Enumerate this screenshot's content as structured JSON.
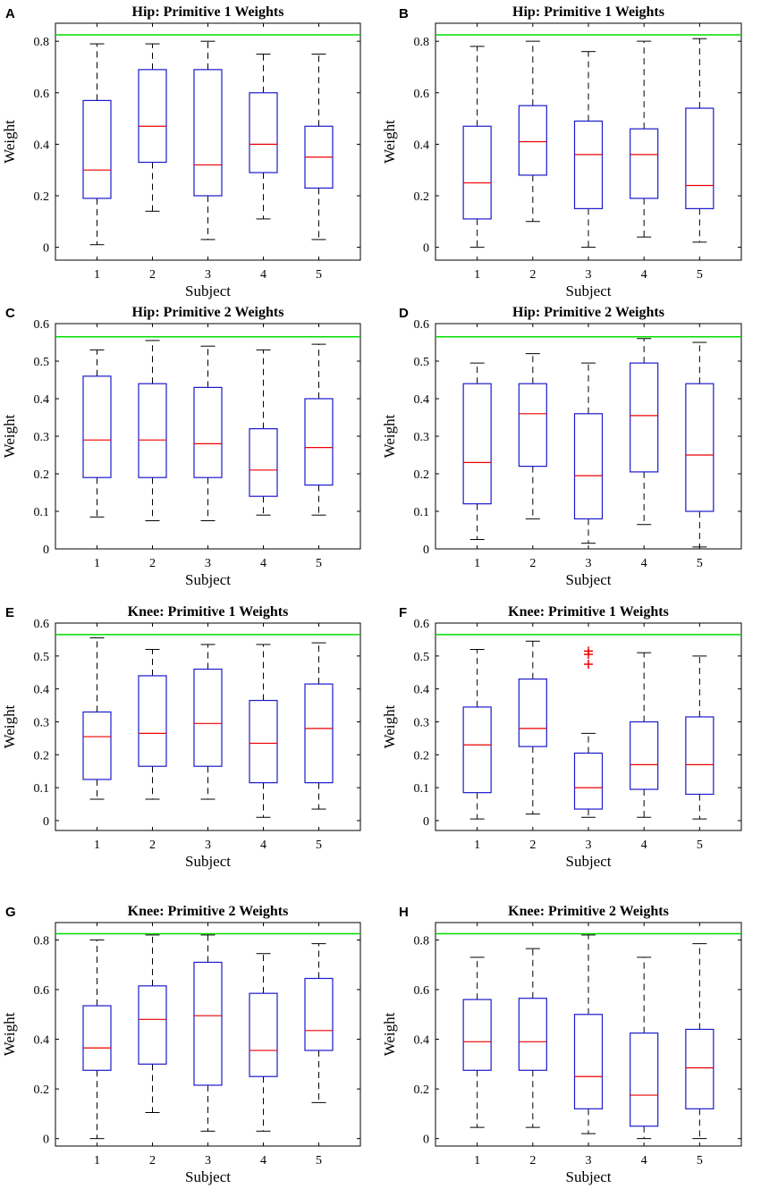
{
  "figure": {
    "reference_line_color": "#00dd00",
    "box_color": "#1a1acc",
    "median_color": "#ee0000",
    "whisker_color": "#000000",
    "outlier_color": "#ee0000"
  },
  "chart_data": [
    {
      "panel": "A",
      "type": "boxplot",
      "title": "Hip: Primitive 1 Weights",
      "xlabel": "Subject",
      "ylabel": "Weight",
      "categories": [
        "1",
        "2",
        "3",
        "4",
        "5"
      ],
      "ylim": [
        -0.05,
        0.87
      ],
      "yticks": [
        "0",
        "0.2",
        "0.4",
        "0.6",
        "0.8"
      ],
      "ytick_values": [
        0,
        0.2,
        0.4,
        0.6,
        0.8
      ],
      "reference_line": 0.825,
      "boxes": [
        {
          "min": 0.01,
          "q1": 0.19,
          "median": 0.3,
          "q3": 0.57,
          "max": 0.79,
          "outliers": []
        },
        {
          "min": 0.14,
          "q1": 0.33,
          "median": 0.47,
          "q3": 0.69,
          "max": 0.79,
          "outliers": []
        },
        {
          "min": 0.03,
          "q1": 0.2,
          "median": 0.32,
          "q3": 0.69,
          "max": 0.8,
          "outliers": []
        },
        {
          "min": 0.11,
          "q1": 0.29,
          "median": 0.4,
          "q3": 0.6,
          "max": 0.75,
          "outliers": []
        },
        {
          "min": 0.03,
          "q1": 0.23,
          "median": 0.35,
          "q3": 0.47,
          "max": 0.75,
          "outliers": []
        }
      ]
    },
    {
      "panel": "B",
      "type": "boxplot",
      "title": "Hip: Primitive 1 Weights",
      "xlabel": "Subject",
      "ylabel": "Weight",
      "categories": [
        "1",
        "2",
        "3",
        "4",
        "5"
      ],
      "ylim": [
        -0.05,
        0.87
      ],
      "yticks": [
        "0",
        "0.2",
        "0.4",
        "0.6",
        "0.8"
      ],
      "ytick_values": [
        0,
        0.2,
        0.4,
        0.6,
        0.8
      ],
      "reference_line": 0.825,
      "boxes": [
        {
          "min": 0.0,
          "q1": 0.11,
          "median": 0.25,
          "q3": 0.47,
          "max": 0.78,
          "outliers": []
        },
        {
          "min": 0.1,
          "q1": 0.28,
          "median": 0.41,
          "q3": 0.55,
          "max": 0.8,
          "outliers": []
        },
        {
          "min": 0.0,
          "q1": 0.15,
          "median": 0.36,
          "q3": 0.49,
          "max": 0.76,
          "outliers": []
        },
        {
          "min": 0.04,
          "q1": 0.19,
          "median": 0.36,
          "q3": 0.46,
          "max": 0.8,
          "outliers": []
        },
        {
          "min": 0.02,
          "q1": 0.15,
          "median": 0.24,
          "q3": 0.54,
          "max": 0.81,
          "outliers": []
        }
      ]
    },
    {
      "panel": "C",
      "type": "boxplot",
      "title": "Hip: Primitive 2 Weights",
      "xlabel": "Subject",
      "ylabel": "Weight",
      "categories": [
        "1",
        "2",
        "3",
        "4",
        "5"
      ],
      "ylim": [
        0,
        0.6
      ],
      "yticks": [
        "0",
        "0.1",
        "0.2",
        "0.3",
        "0.4",
        "0.5",
        "0.6"
      ],
      "ytick_values": [
        0,
        0.1,
        0.2,
        0.3,
        0.4,
        0.5,
        0.6
      ],
      "reference_line": 0.565,
      "boxes": [
        {
          "min": 0.085,
          "q1": 0.19,
          "median": 0.29,
          "q3": 0.46,
          "max": 0.53,
          "outliers": []
        },
        {
          "min": 0.075,
          "q1": 0.19,
          "median": 0.29,
          "q3": 0.44,
          "max": 0.555,
          "outliers": []
        },
        {
          "min": 0.075,
          "q1": 0.19,
          "median": 0.28,
          "q3": 0.43,
          "max": 0.54,
          "outliers": []
        },
        {
          "min": 0.09,
          "q1": 0.14,
          "median": 0.21,
          "q3": 0.32,
          "max": 0.53,
          "outliers": []
        },
        {
          "min": 0.09,
          "q1": 0.17,
          "median": 0.27,
          "q3": 0.4,
          "max": 0.545,
          "outliers": []
        }
      ]
    },
    {
      "panel": "D",
      "type": "boxplot",
      "title": "Hip: Primitive 2 Weights",
      "xlabel": "Subject",
      "ylabel": "Weight",
      "categories": [
        "1",
        "2",
        "3",
        "4",
        "5"
      ],
      "ylim": [
        0,
        0.6
      ],
      "yticks": [
        "0",
        "0.1",
        "0.2",
        "0.3",
        "0.4",
        "0.5",
        "0.6"
      ],
      "ytick_values": [
        0,
        0.1,
        0.2,
        0.3,
        0.4,
        0.5,
        0.6
      ],
      "reference_line": 0.565,
      "boxes": [
        {
          "min": 0.025,
          "q1": 0.12,
          "median": 0.23,
          "q3": 0.44,
          "max": 0.495,
          "outliers": []
        },
        {
          "min": 0.08,
          "q1": 0.22,
          "median": 0.36,
          "q3": 0.44,
          "max": 0.52,
          "outliers": []
        },
        {
          "min": 0.015,
          "q1": 0.08,
          "median": 0.195,
          "q3": 0.36,
          "max": 0.495,
          "outliers": []
        },
        {
          "min": 0.065,
          "q1": 0.205,
          "median": 0.355,
          "q3": 0.495,
          "max": 0.56,
          "outliers": []
        },
        {
          "min": 0.005,
          "q1": 0.1,
          "median": 0.25,
          "q3": 0.44,
          "max": 0.55,
          "outliers": []
        }
      ]
    },
    {
      "panel": "E",
      "type": "boxplot",
      "title": "Knee: Primitive 1 Weights",
      "xlabel": "Subject",
      "ylabel": "Weight",
      "categories": [
        "1",
        "2",
        "3",
        "4",
        "5"
      ],
      "ylim": [
        -0.03,
        0.6
      ],
      "yticks": [
        "0",
        "0.1",
        "0.2",
        "0.3",
        "0.4",
        "0.5",
        "0.6"
      ],
      "ytick_values": [
        0,
        0.1,
        0.2,
        0.3,
        0.4,
        0.5,
        0.6
      ],
      "reference_line": 0.565,
      "boxes": [
        {
          "min": 0.065,
          "q1": 0.125,
          "median": 0.255,
          "q3": 0.33,
          "max": 0.555,
          "outliers": []
        },
        {
          "min": 0.065,
          "q1": 0.165,
          "median": 0.265,
          "q3": 0.44,
          "max": 0.52,
          "outliers": []
        },
        {
          "min": 0.065,
          "q1": 0.165,
          "median": 0.295,
          "q3": 0.46,
          "max": 0.535,
          "outliers": []
        },
        {
          "min": 0.01,
          "q1": 0.115,
          "median": 0.235,
          "q3": 0.365,
          "max": 0.535,
          "outliers": []
        },
        {
          "min": 0.035,
          "q1": 0.115,
          "median": 0.28,
          "q3": 0.415,
          "max": 0.54,
          "outliers": []
        }
      ]
    },
    {
      "panel": "F",
      "type": "boxplot",
      "title": "Knee: Primitive 1 Weights",
      "xlabel": "Subject",
      "ylabel": "Weight",
      "categories": [
        "1",
        "2",
        "3",
        "4",
        "5"
      ],
      "ylim": [
        -0.03,
        0.6
      ],
      "yticks": [
        "0",
        "0.1",
        "0.2",
        "0.3",
        "0.4",
        "0.5",
        "0.6"
      ],
      "ytick_values": [
        0,
        0.1,
        0.2,
        0.3,
        0.4,
        0.5,
        0.6
      ],
      "reference_line": 0.565,
      "boxes": [
        {
          "min": 0.005,
          "q1": 0.085,
          "median": 0.23,
          "q3": 0.345,
          "max": 0.52,
          "outliers": []
        },
        {
          "min": 0.02,
          "q1": 0.225,
          "median": 0.28,
          "q3": 0.43,
          "max": 0.545,
          "outliers": []
        },
        {
          "min": 0.01,
          "q1": 0.035,
          "median": 0.1,
          "q3": 0.205,
          "max": 0.265,
          "outliers": [
            0.475,
            0.505,
            0.515
          ]
        },
        {
          "min": 0.01,
          "q1": 0.095,
          "median": 0.17,
          "q3": 0.3,
          "max": 0.51,
          "outliers": []
        },
        {
          "min": 0.005,
          "q1": 0.08,
          "median": 0.17,
          "q3": 0.315,
          "max": 0.5,
          "outliers": []
        }
      ]
    },
    {
      "panel": "G",
      "type": "boxplot",
      "title": "Knee: Primitive 2 Weights",
      "xlabel": "Subject",
      "ylabel": "Weight",
      "categories": [
        "1",
        "2",
        "3",
        "4",
        "5"
      ],
      "ylim": [
        -0.03,
        0.87
      ],
      "yticks": [
        "0",
        "0.2",
        "0.4",
        "0.6",
        "0.8"
      ],
      "ytick_values": [
        0,
        0.2,
        0.4,
        0.6,
        0.8
      ],
      "reference_line": 0.825,
      "boxes": [
        {
          "min": 0.0,
          "q1": 0.275,
          "median": 0.365,
          "q3": 0.535,
          "max": 0.8,
          "outliers": []
        },
        {
          "min": 0.105,
          "q1": 0.3,
          "median": 0.48,
          "q3": 0.615,
          "max": 0.82,
          "outliers": []
        },
        {
          "min": 0.03,
          "q1": 0.215,
          "median": 0.495,
          "q3": 0.71,
          "max": 0.82,
          "outliers": []
        },
        {
          "min": 0.03,
          "q1": 0.25,
          "median": 0.355,
          "q3": 0.585,
          "max": 0.745,
          "outliers": []
        },
        {
          "min": 0.145,
          "q1": 0.355,
          "median": 0.435,
          "q3": 0.645,
          "max": 0.785,
          "outliers": []
        }
      ]
    },
    {
      "panel": "H",
      "type": "boxplot",
      "title": "Knee: Primitive 2 Weights",
      "xlabel": "Subject",
      "ylabel": "Weight",
      "categories": [
        "1",
        "2",
        "3",
        "4",
        "5"
      ],
      "ylim": [
        -0.03,
        0.87
      ],
      "yticks": [
        "0",
        "0.2",
        "0.4",
        "0.6",
        "0.8"
      ],
      "ytick_values": [
        0,
        0.2,
        0.4,
        0.6,
        0.8
      ],
      "reference_line": 0.825,
      "boxes": [
        {
          "min": 0.045,
          "q1": 0.275,
          "median": 0.39,
          "q3": 0.56,
          "max": 0.73,
          "outliers": []
        },
        {
          "min": 0.045,
          "q1": 0.275,
          "median": 0.39,
          "q3": 0.565,
          "max": 0.765,
          "outliers": []
        },
        {
          "min": 0.02,
          "q1": 0.12,
          "median": 0.25,
          "q3": 0.5,
          "max": 0.82,
          "outliers": []
        },
        {
          "min": 0.0,
          "q1": 0.05,
          "median": 0.175,
          "q3": 0.425,
          "max": 0.73,
          "outliers": []
        },
        {
          "min": 0.0,
          "q1": 0.12,
          "median": 0.285,
          "q3": 0.44,
          "max": 0.785,
          "outliers": []
        }
      ]
    }
  ]
}
